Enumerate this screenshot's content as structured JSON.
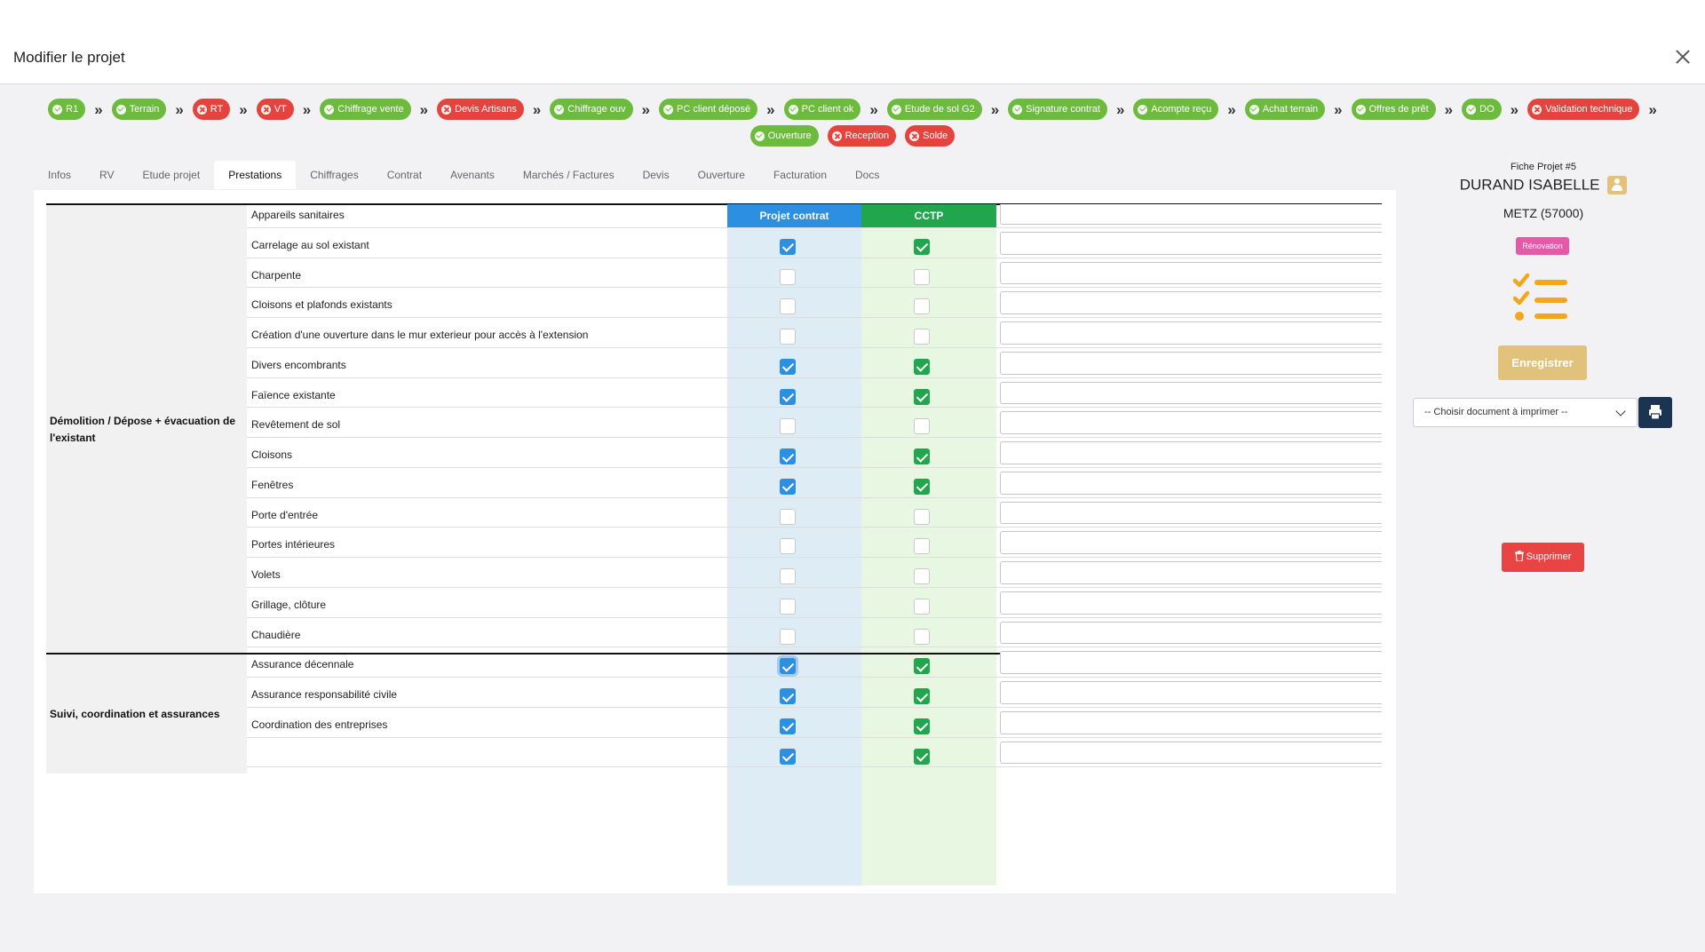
{
  "header": {
    "title": "Modifier le projet",
    "close_icon": "close-icon"
  },
  "steps": [
    {
      "label": "R1",
      "status": "done"
    },
    {
      "label": "Terrain",
      "status": "done"
    },
    {
      "label": "RT",
      "status": "pending"
    },
    {
      "label": "VT",
      "status": "pending"
    },
    {
      "label": "Chiffrage vente",
      "status": "done"
    },
    {
      "label": "Devis Artisans",
      "status": "pending"
    },
    {
      "label": "Chiffrage ouv",
      "status": "done"
    },
    {
      "label": "PC client déposé",
      "status": "done"
    },
    {
      "label": "PC client ok",
      "status": "done"
    },
    {
      "label": "Etude de sol G2",
      "status": "done"
    },
    {
      "label": "Signature contrat",
      "status": "done"
    },
    {
      "label": "Acompte reçu",
      "status": "done"
    },
    {
      "label": "Achat terrain",
      "status": "done"
    },
    {
      "label": "Offres de prêt",
      "status": "done"
    },
    {
      "label": "DO",
      "status": "done"
    },
    {
      "label": "Validation technique",
      "status": "pending"
    },
    {
      "label": "Ouverture",
      "status": "done"
    },
    {
      "label": "Reception",
      "status": "pending"
    },
    {
      "label": "Solde",
      "status": "pending"
    }
  ],
  "step_separator": "»",
  "tabs": [
    {
      "label": "Infos",
      "active": false
    },
    {
      "label": "RV",
      "active": false
    },
    {
      "label": "Etude projet",
      "active": false
    },
    {
      "label": "Prestations",
      "active": true
    },
    {
      "label": "Chiffrages",
      "active": false
    },
    {
      "label": "Contrat",
      "active": false
    },
    {
      "label": "Avenants",
      "active": false
    },
    {
      "label": "Marchés / Factures",
      "active": false
    },
    {
      "label": "Devis",
      "active": false
    },
    {
      "label": "Ouverture",
      "active": false
    },
    {
      "label": "Facturation",
      "active": false
    },
    {
      "label": "Docs",
      "active": false
    }
  ],
  "table": {
    "col_projet": "Projet contrat",
    "col_cctp": "CCTP",
    "groups": [
      {
        "label": "Démolition / Dépose + évacuation de l'existant",
        "rows": [
          {
            "label": "Appareils sanitaires",
            "projet": true,
            "cctp": true,
            "note": ""
          },
          {
            "label": "Carrelage au sol existant",
            "projet": true,
            "cctp": true,
            "note": ""
          },
          {
            "label": "Charpente",
            "projet": false,
            "cctp": false,
            "note": ""
          },
          {
            "label": "Cloisons et plafonds existants",
            "projet": false,
            "cctp": false,
            "note": ""
          },
          {
            "label": "Création d'une ouverture dans le mur exterieur pour accès à l'extension",
            "projet": false,
            "cctp": false,
            "note": ""
          },
          {
            "label": "Divers encombrants",
            "projet": true,
            "cctp": true,
            "note": ""
          },
          {
            "label": "Faïence existante",
            "projet": true,
            "cctp": true,
            "note": ""
          },
          {
            "label": "Revêtement de sol",
            "projet": false,
            "cctp": false,
            "note": ""
          },
          {
            "label": "Cloisons",
            "projet": true,
            "cctp": true,
            "note": ""
          },
          {
            "label": "Fenêtres",
            "projet": true,
            "cctp": true,
            "note": ""
          },
          {
            "label": "Porte d'entrée",
            "projet": false,
            "cctp": false,
            "note": ""
          },
          {
            "label": "Portes intérieures",
            "projet": false,
            "cctp": false,
            "note": ""
          },
          {
            "label": "Volets",
            "projet": false,
            "cctp": false,
            "note": ""
          },
          {
            "label": "Grillage, clôture",
            "projet": false,
            "cctp": false,
            "note": ""
          },
          {
            "label": "Chaudière",
            "projet": false,
            "cctp": false,
            "note": ""
          }
        ]
      },
      {
        "label": "Suivi, coordination et assurances",
        "rows": [
          {
            "label": "Assurance décennale",
            "projet": true,
            "cctp": true,
            "note": ""
          },
          {
            "label": "Assurance responsabilité civile",
            "projet": true,
            "cctp": true,
            "note": ""
          },
          {
            "label": "Coordination des entreprises",
            "projet": true,
            "cctp": true,
            "note": ""
          },
          {
            "label": "",
            "projet": true,
            "cctp": true,
            "note": ""
          }
        ]
      }
    ]
  },
  "sidebar": {
    "fiche_label": "Fiche Projet #5",
    "client_name": "DURAND ISABELLE",
    "city": "METZ (57000)",
    "type_badge": "Rénovation",
    "save_label": "Enregistrer",
    "doc_select_value": "-- Choisir document à imprimer --",
    "delete_label": "Supprimer"
  },
  "colors": {
    "done": "#6dbb3d",
    "pending": "#e5443e",
    "projet_header": "#2d8fe0",
    "cctp_header": "#21a64d",
    "save_button": "#e0c27a",
    "print_button": "#1b3451",
    "delete_button": "#e94444",
    "type_badge": "#e45aa8",
    "checklist_icon": "#f3a51c"
  }
}
